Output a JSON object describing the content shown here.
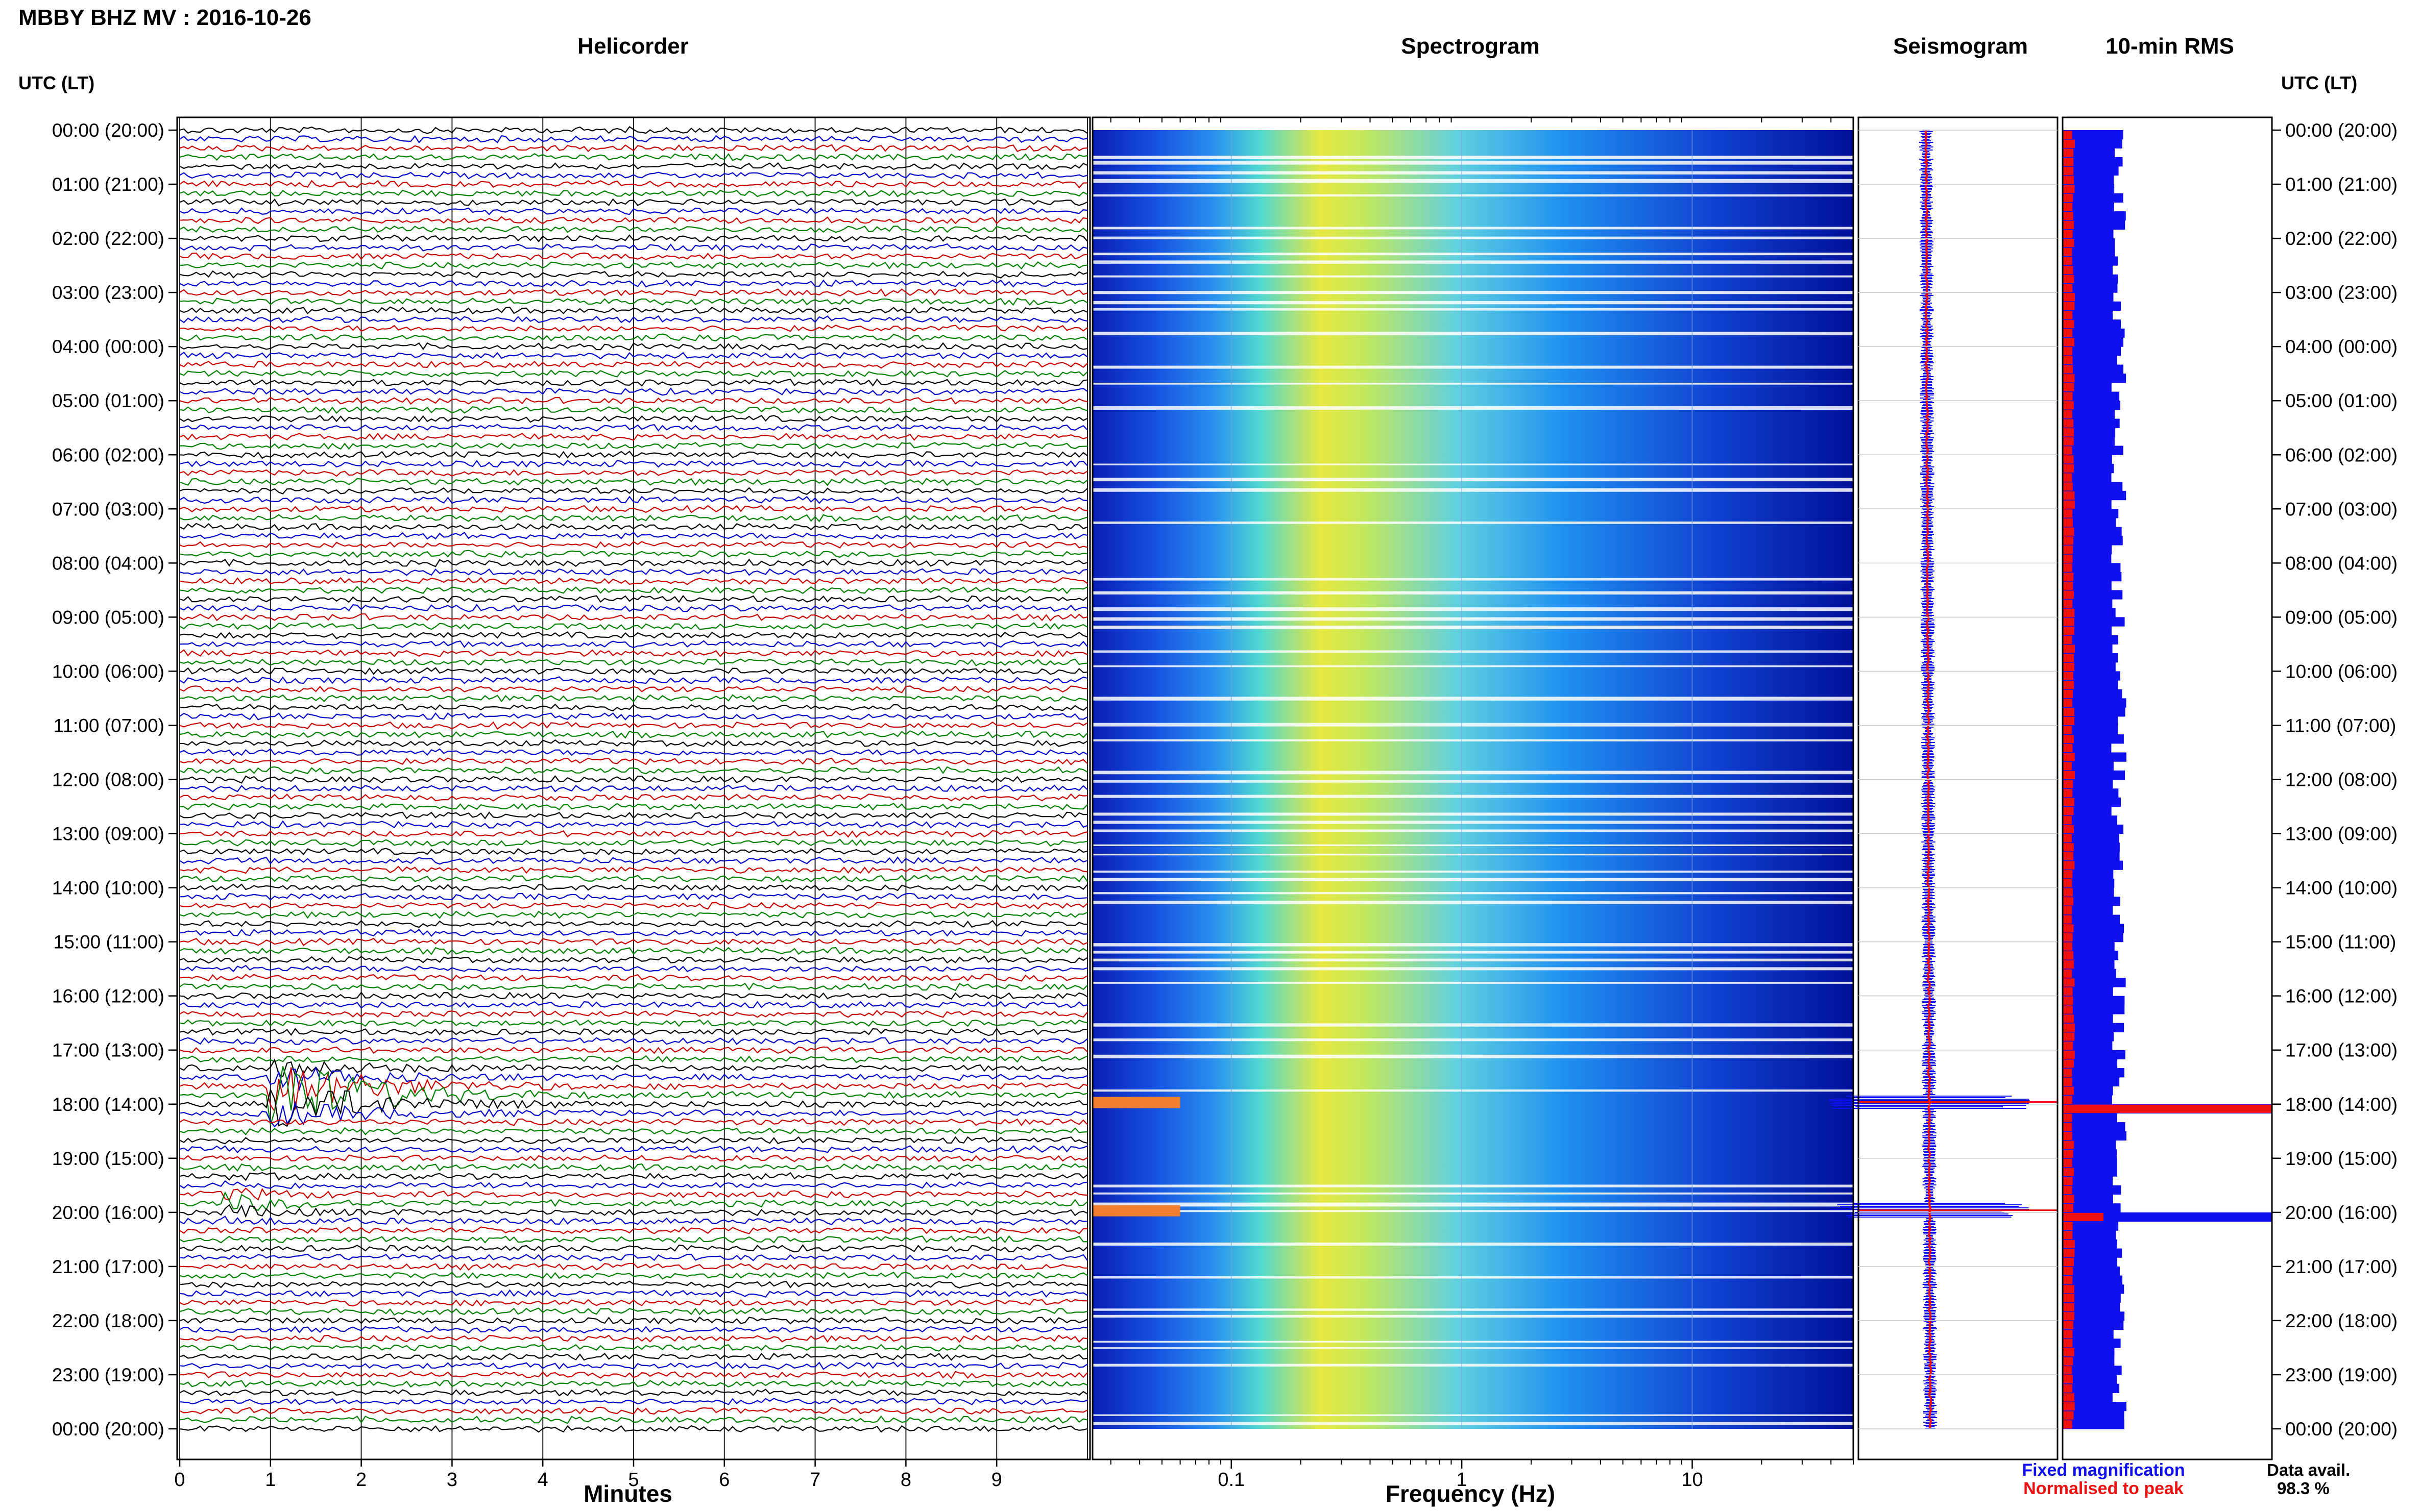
{
  "header": {
    "title": "MBBY BHZ MV : 2016-10-26"
  },
  "panels": {
    "helicorder": "Helicorder",
    "spectrogram": "Spectrogram",
    "seismogram": "Seismogram",
    "rms": "10-min RMS"
  },
  "axis": {
    "utc_left": "UTC (LT)",
    "utc_right": "UTC (LT)",
    "minutes_label": "Minutes",
    "frequency_label": "Frequency (Hz)"
  },
  "legend": {
    "fixed": "Fixed magnification",
    "normalised": "Normalised to peak",
    "fixed_color": "#1010ee",
    "normalised_color": "#ee1010"
  },
  "availability": {
    "label": "Data avail.",
    "value": "98.3 %"
  },
  "chart_data": [
    {
      "type": "line",
      "name": "helicorder",
      "time_labels": [
        "00:00 (20:00)",
        "01:00 (21:00)",
        "02:00 (22:00)",
        "03:00 (23:00)",
        "04:00 (00:00)",
        "05:00 (01:00)",
        "06:00 (02:00)",
        "07:00 (03:00)",
        "08:00 (04:00)",
        "09:00 (05:00)",
        "10:00 (06:00)",
        "11:00 (07:00)",
        "12:00 (08:00)",
        "13:00 (09:00)",
        "14:00 (10:00)",
        "15:00 (11:00)",
        "16:00 (12:00)",
        "17:00 (13:00)",
        "18:00 (14:00)",
        "19:00 (15:00)",
        "20:00 (16:00)",
        "21:00 (17:00)",
        "22:00 (18:00)",
        "23:00 (19:00)",
        "00:00 (20:00)"
      ],
      "x_ticks": [
        "0",
        "1",
        "2",
        "3",
        "4",
        "5",
        "6",
        "7",
        "8",
        "9"
      ],
      "xlim": [
        0,
        10
      ],
      "traces_per_hour": 6,
      "trace_colors": [
        "#000000",
        "#0000c8",
        "#c80000",
        "#008000"
      ],
      "events": [
        {
          "hour": 17.83,
          "minute_start": 1.0,
          "minute_end": 4.5,
          "amplitude": "large",
          "color": "#008000"
        },
        {
          "hour": 19.83,
          "minute_start": 0.5,
          "minute_end": 2.5,
          "amplitude": "medium",
          "color": "#000000"
        }
      ]
    },
    {
      "type": "heatmap",
      "name": "spectrogram",
      "x_scale": "log",
      "xlim": [
        0.025,
        50
      ],
      "x_ticks": [
        "0.1",
        "1",
        "10"
      ],
      "colormap": [
        "#00008c",
        "#1040e0",
        "#20a0f0",
        "#40e0c0",
        "#e0e040",
        "#f08020"
      ],
      "energy_peak_hz": 0.25
    },
    {
      "type": "line",
      "name": "seismogram",
      "spikes_hours": [
        17.96,
        19.96
      ]
    },
    {
      "type": "bar",
      "name": "rms",
      "series": [
        {
          "name": "Fixed magnification",
          "color": "#1010ee"
        },
        {
          "name": "Normalised to peak",
          "color": "#ee1010"
        }
      ],
      "peak_hours": [
        17.96,
        19.96
      ]
    }
  ]
}
